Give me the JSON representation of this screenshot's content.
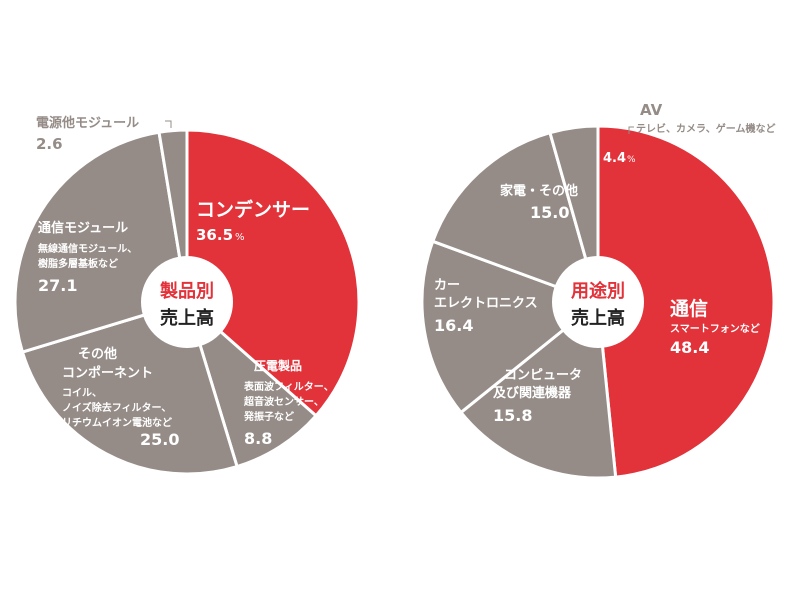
{
  "colors": {
    "red": "#e2323a",
    "gray": "#958c88",
    "white": "#ffffff",
    "dark": "#222222"
  },
  "chart_data": [
    {
      "type": "pie",
      "center_label": [
        "製品別",
        "売上高"
      ],
      "unit": "%",
      "slices": [
        {
          "name": "コンデンサー",
          "value": 36.5,
          "value_text": "36.5",
          "unit_text": "%",
          "color": "red"
        },
        {
          "name": "圧電製品",
          "value": 8.8,
          "value_text": "8.8",
          "sub": [
            "表面波フィルター、",
            "超音波センサー、",
            "発振子など"
          ],
          "color": "gray"
        },
        {
          "name": "その他 コンポーネント",
          "value": 25.0,
          "value_text": "25.0",
          "name_lines": [
            "その他",
            "コンポーネント"
          ],
          "sub": [
            "コイル、",
            "ノイズ除去フィルター、",
            "リチウムイオン電池など"
          ],
          "color": "gray"
        },
        {
          "name": "通信モジュール",
          "value": 27.1,
          "value_text": "27.1",
          "sub": [
            "無線通信モジュール、",
            "樹脂多層基板など"
          ],
          "color": "gray"
        },
        {
          "name": "電源他モジュール",
          "value": 2.6,
          "value_text": "2.6",
          "color": "gray"
        }
      ]
    },
    {
      "type": "pie",
      "center_label": [
        "用途別",
        "売上高"
      ],
      "unit": "%",
      "slices": [
        {
          "name": "通信",
          "value": 48.4,
          "value_text": "48.4",
          "sub": [
            "スマートフォンなど"
          ],
          "color": "red"
        },
        {
          "name": "コンピュータ 及び関連機器",
          "value": 15.8,
          "value_text": "15.8",
          "name_lines": [
            "コンピュータ",
            "及び関連機器"
          ],
          "color": "gray"
        },
        {
          "name": "カー エレクトロニクス",
          "value": 16.4,
          "value_text": "16.4",
          "name_lines": [
            "カー",
            "エレクトロニクス"
          ],
          "color": "gray"
        },
        {
          "name": "家電・その他",
          "value": 15.0,
          "value_text": "15.0",
          "color": "gray"
        },
        {
          "name": "AV",
          "value": 4.4,
          "value_text": "4.4",
          "unit_text": "%",
          "sub": [
            "テレビ、カメラ、ゲーム機など"
          ],
          "color": "gray"
        }
      ]
    }
  ]
}
